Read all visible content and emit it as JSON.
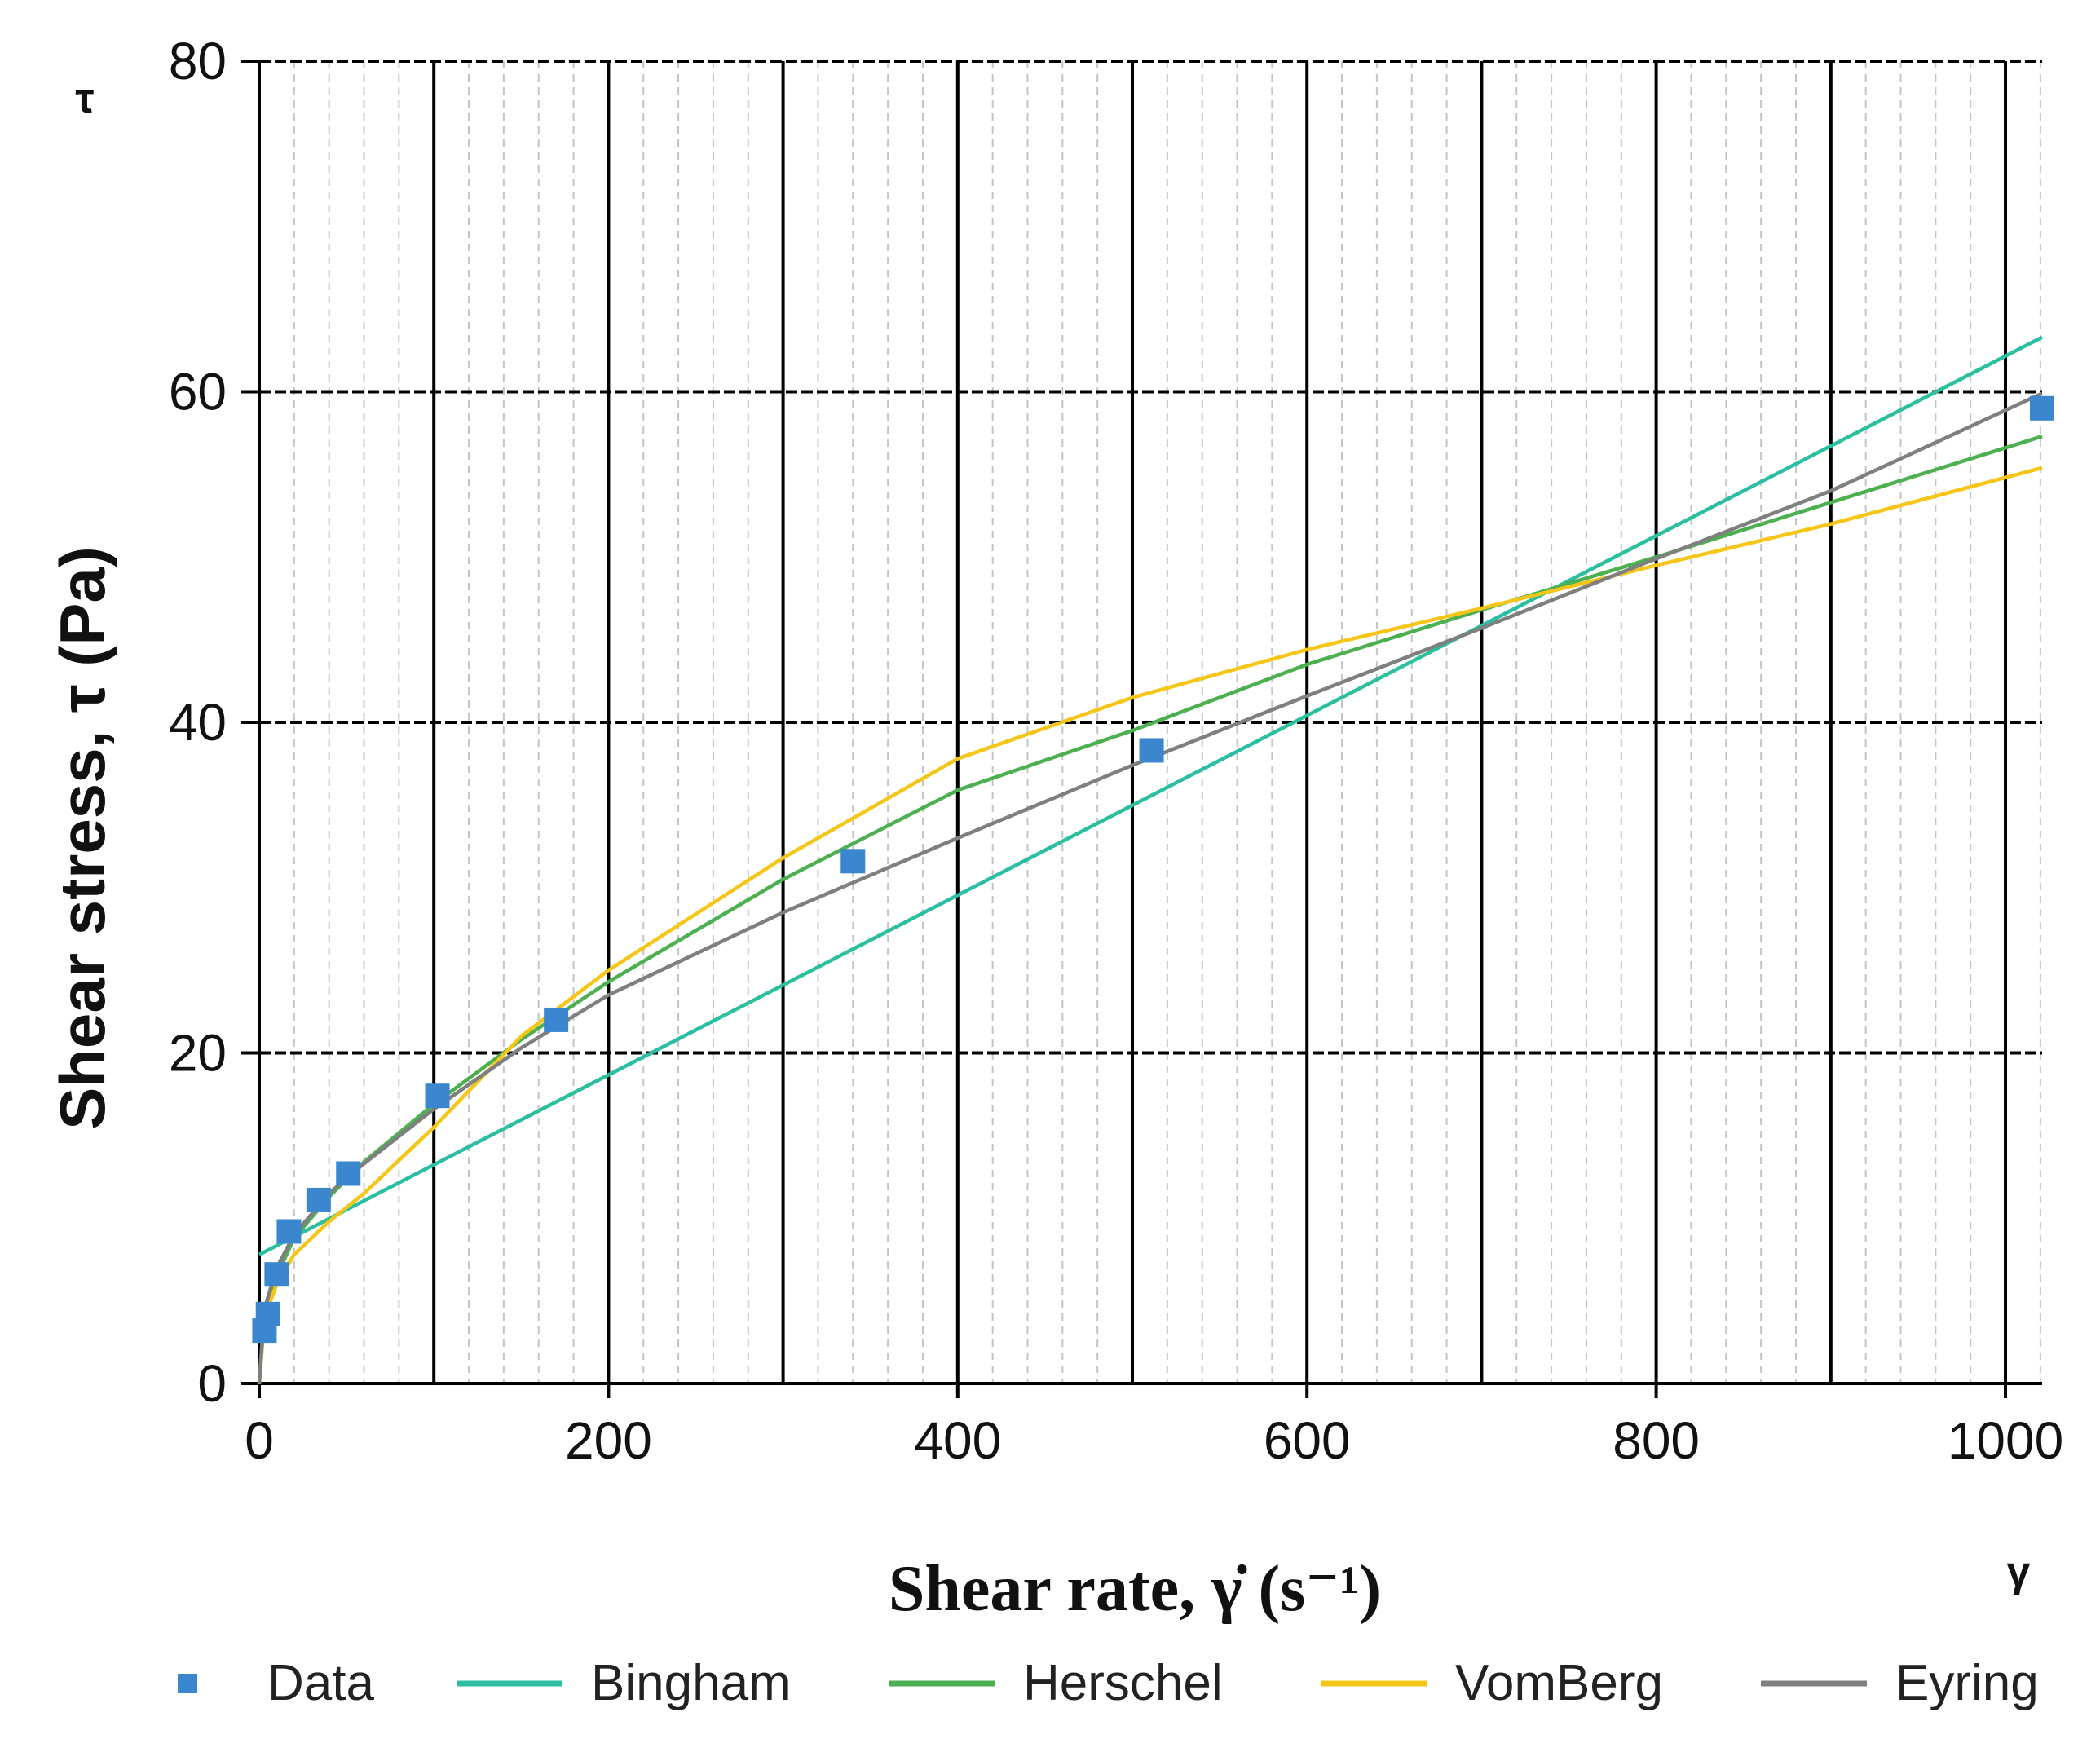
{
  "chart_data": {
    "type": "line",
    "title": "",
    "xlabel": "Shear rate, γ̇ (s⁻¹)",
    "ylabel": "Shear stress, τ (Pa)",
    "x_axis_symbol": "γ",
    "y_axis_symbol": "τ",
    "xlim": [
      0,
      1021
    ],
    "ylim": [
      0,
      80
    ],
    "x_ticks": [
      0,
      200,
      400,
      600,
      800,
      1000
    ],
    "x_tick_labels": [
      "0",
      "200",
      "400",
      "600",
      "800",
      "1000"
    ],
    "y_ticks": [
      0,
      20,
      40,
      60,
      80
    ],
    "y_tick_labels": [
      "0",
      "20",
      "40",
      "60",
      "80"
    ],
    "grid": true,
    "legend_position": "bottom",
    "series": [
      {
        "name": "Data",
        "kind": "scatter",
        "color": "#3a86cf",
        "x": [
          3,
          5,
          10,
          17,
          34,
          51,
          102,
          170,
          340,
          511,
          1021
        ],
        "y": [
          3.2,
          4.2,
          6.6,
          9.2,
          11.1,
          12.7,
          17.4,
          22.0,
          31.6,
          38.3,
          59.0
        ]
      },
      {
        "name": "Bingham",
        "kind": "line",
        "color": "#2bbfa0",
        "x": [
          0,
          1021
        ],
        "y": [
          7.8,
          63.3
        ]
      },
      {
        "name": "Herschel",
        "kind": "line",
        "color": "#4caf50",
        "x": [
          0,
          3,
          10,
          20,
          40,
          60,
          100,
          150,
          200,
          300,
          400,
          500,
          600,
          700,
          800,
          900,
          1021
        ],
        "y": [
          0,
          4.0,
          6.5,
          8.8,
          11.3,
          13.4,
          16.9,
          20.8,
          24.3,
          30.5,
          35.9,
          39.5,
          43.5,
          46.8,
          50.0,
          53.3,
          57.3
        ]
      },
      {
        "name": "VomBerg",
        "kind": "line",
        "color": "#f5c518",
        "x": [
          0,
          3,
          10,
          20,
          40,
          60,
          100,
          150,
          200,
          300,
          400,
          500,
          600,
          700,
          800,
          900,
          1021
        ],
        "y": [
          0,
          4.0,
          6.0,
          7.8,
          9.8,
          11.5,
          15.5,
          21.0,
          25.0,
          31.8,
          37.8,
          41.5,
          44.4,
          46.9,
          49.5,
          52.0,
          55.4
        ]
      },
      {
        "name": "Eyring",
        "kind": "line",
        "color": "#7f7f7f",
        "x": [
          0,
          3,
          10,
          20,
          40,
          60,
          100,
          150,
          200,
          300,
          400,
          500,
          600,
          700,
          800,
          900,
          1021
        ],
        "y": [
          0,
          4.5,
          7.0,
          9.0,
          11.5,
          13.3,
          16.6,
          20.3,
          23.5,
          28.5,
          33.0,
          37.4,
          41.6,
          45.7,
          49.9,
          54.0,
          59.9
        ]
      }
    ]
  }
}
